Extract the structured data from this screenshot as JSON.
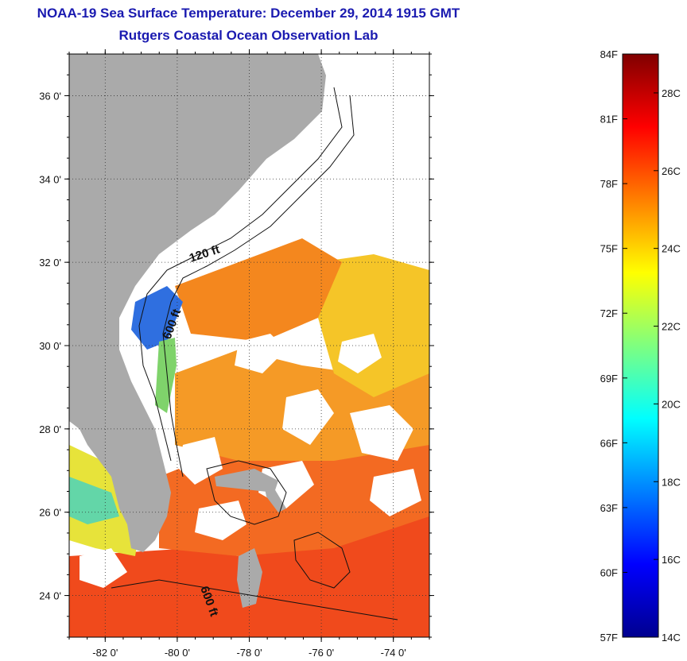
{
  "header": {
    "title": "NOAA-19 Sea Surface Temperature:  December 29, 2014 1915 GMT",
    "subtitle": "Rutgers Coastal Ocean Observation Lab"
  },
  "map": {
    "lon_range": [
      -83,
      -73
    ],
    "lat_range": [
      23,
      37
    ],
    "lat_ticks": [
      {
        "value": 36,
        "label": "36 0'"
      },
      {
        "value": 34,
        "label": "34 0'"
      },
      {
        "value": 32,
        "label": "32 0'"
      },
      {
        "value": 30,
        "label": "30 0'"
      },
      {
        "value": 28,
        "label": "28 0'"
      },
      {
        "value": 26,
        "label": "26 0'"
      },
      {
        "value": 24,
        "label": "24 0'"
      }
    ],
    "lon_ticks": [
      {
        "value": -82,
        "label": "-82 0'"
      },
      {
        "value": -80,
        "label": "-80 0'"
      },
      {
        "value": -78,
        "label": "-78 0'"
      },
      {
        "value": -76,
        "label": "-76 0'"
      },
      {
        "value": -74,
        "label": "-74 0'"
      }
    ],
    "contour_labels": {
      "c120": "120 ft",
      "c600a": "600 ft",
      "c600b": "600 ft"
    },
    "colors": {
      "land": "#aaaaaa",
      "cloud": "#ffffff",
      "warm": "#f04a1c",
      "mid": "#f59a26",
      "cool": "#f5c528",
      "cold": "#2f6fe0"
    }
  },
  "colorbar": {
    "range_f": [
      57,
      84
    ],
    "range_c": [
      14,
      29
    ],
    "f_labels": [
      "84F",
      "81F",
      "78F",
      "75F",
      "72F",
      "69F",
      "66F",
      "63F",
      "60F",
      "57F"
    ],
    "c_labels": [
      "28C",
      "26C",
      "24C",
      "22C",
      "20C",
      "18C",
      "16C",
      "14C"
    ]
  }
}
